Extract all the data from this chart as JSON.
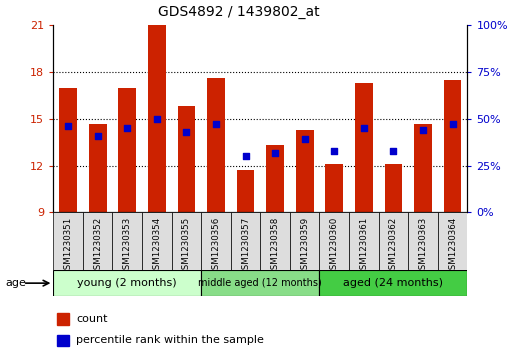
{
  "title": "GDS4892 / 1439802_at",
  "samples": [
    "GSM1230351",
    "GSM1230352",
    "GSM1230353",
    "GSM1230354",
    "GSM1230355",
    "GSM1230356",
    "GSM1230357",
    "GSM1230358",
    "GSM1230359",
    "GSM1230360",
    "GSM1230361",
    "GSM1230362",
    "GSM1230363",
    "GSM1230364"
  ],
  "count_values": [
    17.0,
    14.7,
    17.0,
    21.0,
    15.8,
    17.6,
    11.7,
    13.3,
    14.3,
    12.1,
    17.3,
    12.1,
    14.7,
    17.5
  ],
  "percentile_values": [
    46,
    41,
    45,
    50,
    43,
    47,
    30,
    32,
    39,
    33,
    45,
    33,
    44,
    47
  ],
  "y_min": 9,
  "y_max": 21,
  "y_ticks": [
    9,
    12,
    15,
    18,
    21
  ],
  "right_y_ticks": [
    0,
    25,
    50,
    75,
    100
  ],
  "right_y_labels": [
    "0%",
    "25%",
    "50%",
    "75%",
    "100%"
  ],
  "bar_color": "#CC2200",
  "dot_color": "#0000CC",
  "tick_label_color_left": "#CC2200",
  "tick_label_color_right": "#0000CC",
  "groups": [
    {
      "label": "young (2 months)",
      "start": 0,
      "end": 5,
      "color": "#CCFFCC",
      "fontsize": 8
    },
    {
      "label": "middle aged (12 months)",
      "start": 5,
      "end": 9,
      "color": "#88DD88",
      "fontsize": 7
    },
    {
      "label": "aged (24 months)",
      "start": 9,
      "end": 14,
      "color": "#44CC44",
      "fontsize": 8
    }
  ],
  "bar_width": 0.6
}
